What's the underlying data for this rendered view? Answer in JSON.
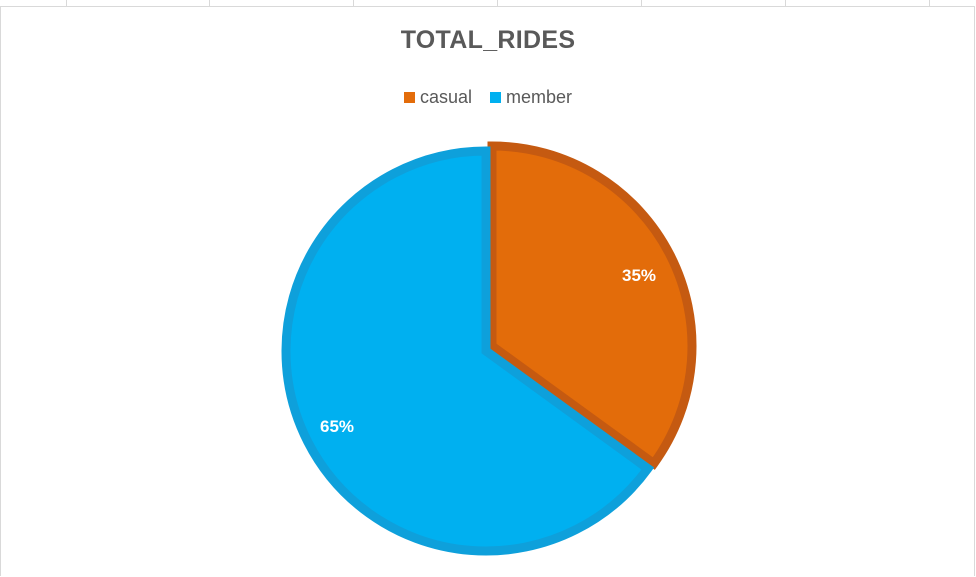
{
  "chart_data": {
    "type": "pie",
    "title": "TOTAL_RIDES",
    "legend_placement": "top",
    "categories": [
      "casual",
      "member"
    ],
    "values": [
      35,
      65
    ],
    "data_labels": [
      "35%",
      "65%"
    ],
    "colors": [
      "#e36c0a",
      "#00b0f0"
    ],
    "edge_colors": [
      "#c55a11",
      "#0ea0db"
    ]
  }
}
